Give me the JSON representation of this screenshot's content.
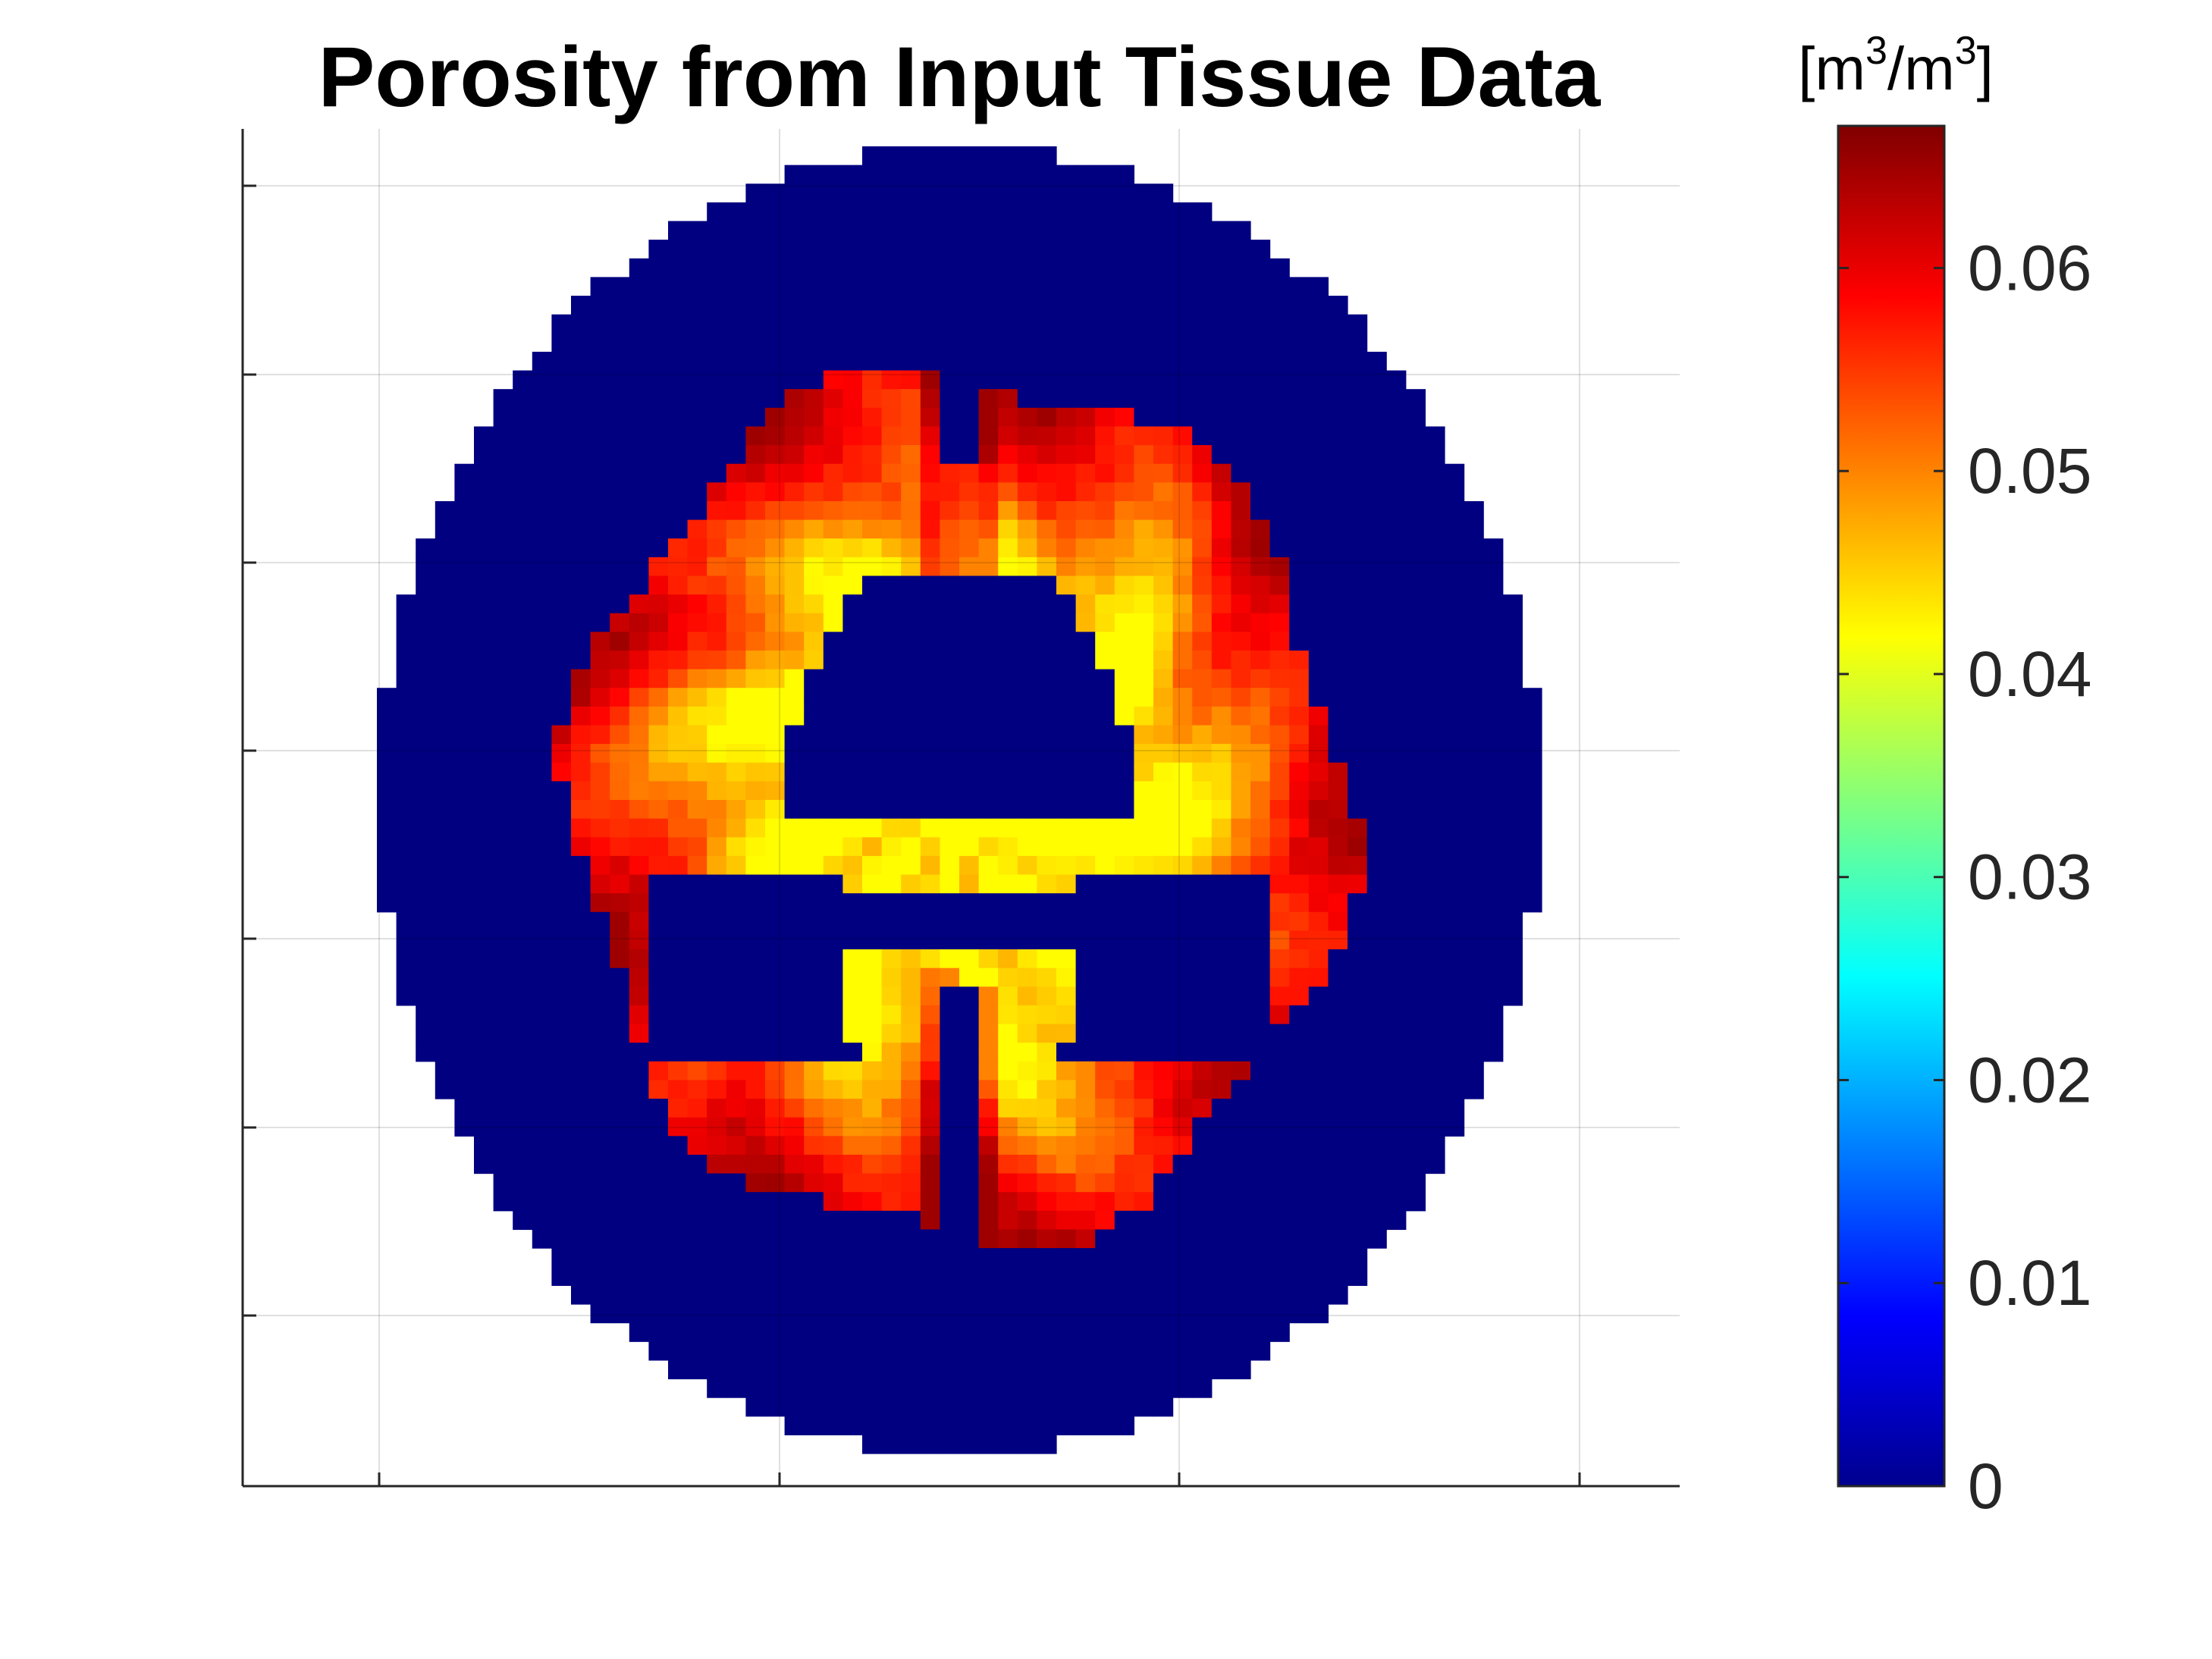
{
  "chart_data": {
    "type": "heatmap",
    "title": "Porosity from Input Tissue Data",
    "xlabel": "",
    "ylabel": "",
    "grid": true,
    "colormap": "jet",
    "colorbar": {
      "units_base": "m",
      "units_exp": "3",
      "units_open": "[",
      "units_slash": "/",
      "units_close": "]",
      "range": [
        0,
        0.067
      ],
      "ticks": [
        0,
        0.01,
        0.02,
        0.03,
        0.04,
        0.05,
        0.06
      ],
      "tick_labels": [
        "0",
        "0.01",
        "0.02",
        "0.03",
        "0.04",
        "0.05",
        "0.06"
      ]
    },
    "grid_size": [
      60,
      70
    ],
    "regions": {
      "outside_head": "blank",
      "skull_csf_ring": 0.0,
      "ventricles": 0.0,
      "white_matter": 0.042,
      "transition": 0.05,
      "cortex": 0.058,
      "deep_cortex": 0.065
    }
  }
}
